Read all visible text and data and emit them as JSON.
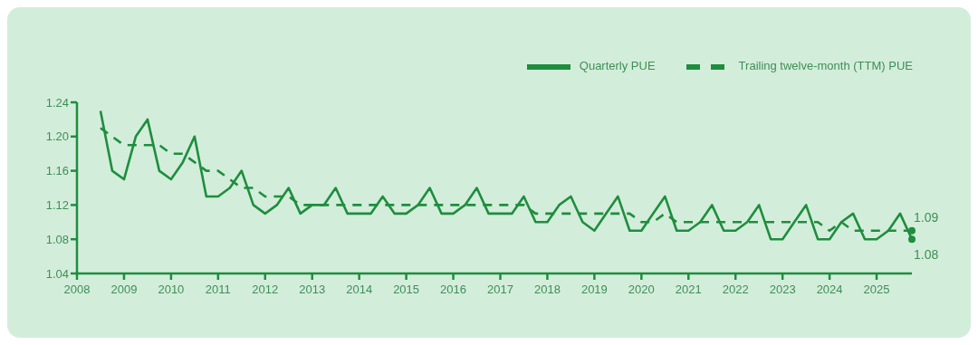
{
  "chart_data": {
    "type": "line",
    "x": [
      2008.5,
      2008.75,
      2009,
      2009.25,
      2009.5,
      2009.75,
      2010,
      2010.25,
      2010.5,
      2010.75,
      2011,
      2011.25,
      2011.5,
      2011.75,
      2012,
      2012.25,
      2012.5,
      2012.75,
      2013,
      2013.25,
      2013.5,
      2013.75,
      2014,
      2014.25,
      2014.5,
      2014.75,
      2015,
      2015.25,
      2015.5,
      2015.75,
      2016,
      2016.25,
      2016.5,
      2016.75,
      2017,
      2017.25,
      2017.5,
      2017.75,
      2018,
      2018.25,
      2018.5,
      2018.75,
      2019,
      2019.25,
      2019.5,
      2019.75,
      2020,
      2020.25,
      2020.5,
      2020.75,
      2021,
      2021.25,
      2021.5,
      2021.75,
      2022,
      2022.25,
      2022.5,
      2022.75,
      2023,
      2023.25,
      2023.5,
      2023.75,
      2024,
      2024.25,
      2024.5,
      2024.75,
      2025,
      2025.25,
      2025.5,
      2025.75
    ],
    "series": [
      {
        "name": "Quarterly PUE",
        "color": "#1e8e3e",
        "line_style": "solid",
        "values": [
          1.23,
          1.16,
          1.15,
          1.2,
          1.22,
          1.16,
          1.15,
          1.17,
          1.2,
          1.13,
          1.13,
          1.14,
          1.16,
          1.12,
          1.11,
          1.12,
          1.14,
          1.11,
          1.12,
          1.12,
          1.14,
          1.11,
          1.11,
          1.11,
          1.13,
          1.11,
          1.11,
          1.12,
          1.14,
          1.11,
          1.11,
          1.12,
          1.14,
          1.11,
          1.11,
          1.11,
          1.13,
          1.1,
          1.1,
          1.12,
          1.13,
          1.1,
          1.09,
          1.11,
          1.13,
          1.09,
          1.09,
          1.11,
          1.13,
          1.09,
          1.09,
          1.1,
          1.12,
          1.09,
          1.09,
          1.1,
          1.12,
          1.08,
          1.08,
          1.1,
          1.12,
          1.08,
          1.08,
          1.1,
          1.11,
          1.08,
          1.08,
          1.09,
          1.11,
          1.08
        ]
      },
      {
        "name": "Trailing twelve-month (TTM) PUE",
        "color": "#1e8e3e",
        "line_style": "dashed",
        "values": [
          1.21,
          1.2,
          1.19,
          1.19,
          1.19,
          1.19,
          1.18,
          1.18,
          1.17,
          1.16,
          1.16,
          1.15,
          1.14,
          1.14,
          1.13,
          1.13,
          1.13,
          1.12,
          1.12,
          1.12,
          1.12,
          1.12,
          1.12,
          1.12,
          1.12,
          1.12,
          1.12,
          1.12,
          1.12,
          1.12,
          1.12,
          1.12,
          1.12,
          1.12,
          1.12,
          1.12,
          1.12,
          1.11,
          1.11,
          1.11,
          1.11,
          1.11,
          1.11,
          1.11,
          1.11,
          1.11,
          1.1,
          1.1,
          1.11,
          1.1,
          1.1,
          1.1,
          1.1,
          1.1,
          1.1,
          1.1,
          1.1,
          1.1,
          1.1,
          1.1,
          1.1,
          1.1,
          1.09,
          1.1,
          1.09,
          1.09,
          1.09,
          1.09,
          1.09,
          1.09
        ]
      }
    ],
    "xlim": [
      2008,
      2025.75
    ],
    "xticks": [
      2008,
      2009,
      2010,
      2011,
      2012,
      2013,
      2014,
      2015,
      2016,
      2017,
      2018,
      2019,
      2020,
      2021,
      2022,
      2023,
      2024,
      2025
    ],
    "ylim": [
      1.04,
      1.24
    ],
    "yticks": [
      {
        "value": 1.04,
        "label": "1.04"
      },
      {
        "value": 1.08,
        "label": "1.08"
      },
      {
        "value": 1.12,
        "label": "1.12"
      },
      {
        "value": 1.16,
        "label": "1.16"
      },
      {
        "value": 1.2,
        "label": "1.20"
      },
      {
        "value": 1.24,
        "label": "1.24"
      }
    ],
    "annotations": [
      {
        "text": "1.09",
        "x": 2025.75,
        "y": 1.09
      },
      {
        "text": "1.08",
        "x": 2025.75,
        "y": 1.08
      }
    ],
    "legend": "top right",
    "marker": "none",
    "grid": false
  }
}
